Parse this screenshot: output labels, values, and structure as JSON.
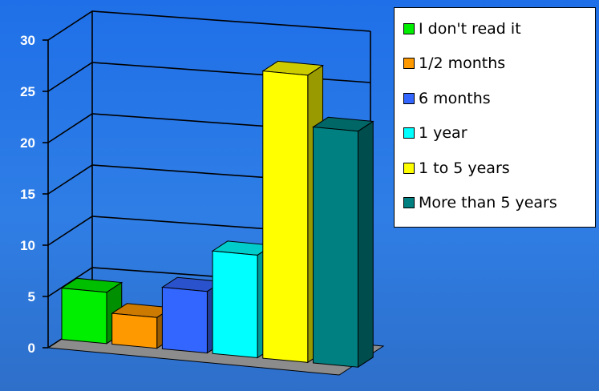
{
  "chart_data": {
    "type": "bar",
    "title": "",
    "xlabel": "",
    "ylabel": "",
    "ylim": [
      0,
      30
    ],
    "yticks": [
      0,
      5,
      10,
      15,
      20,
      25,
      30
    ],
    "grid": true,
    "legend_position": "right",
    "categories": [
      "I don't read it",
      "1/2 months",
      "6 months",
      "1 year",
      "1 to 5 years",
      "More than 5 years"
    ],
    "values": [
      5,
      3,
      6,
      10,
      28,
      23
    ],
    "colors": [
      "#00ee00",
      "#ff9900",
      "#3366ff",
      "#00ffff",
      "#ffff00",
      "#008080"
    ]
  }
}
